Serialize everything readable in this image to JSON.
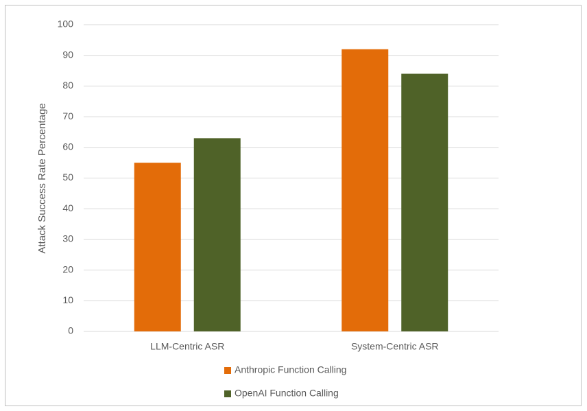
{
  "chart_data": {
    "type": "bar",
    "y_label": "Attack Success Rate Percentage",
    "categories": [
      "LLM-Centric ASR",
      "System-Centric ASR"
    ],
    "series": [
      {
        "name": "Anthropic Function Calling",
        "color": "#e36c09",
        "values": [
          55,
          92
        ]
      },
      {
        "name": "OpenAI Function Calling",
        "color": "#4f6228",
        "values": [
          63,
          84
        ]
      }
    ],
    "ylim": [
      0,
      100
    ],
    "yticks": [
      0,
      10,
      20,
      30,
      40,
      50,
      60,
      70,
      80,
      90,
      100
    ],
    "grid": true,
    "legend": "bottom"
  }
}
